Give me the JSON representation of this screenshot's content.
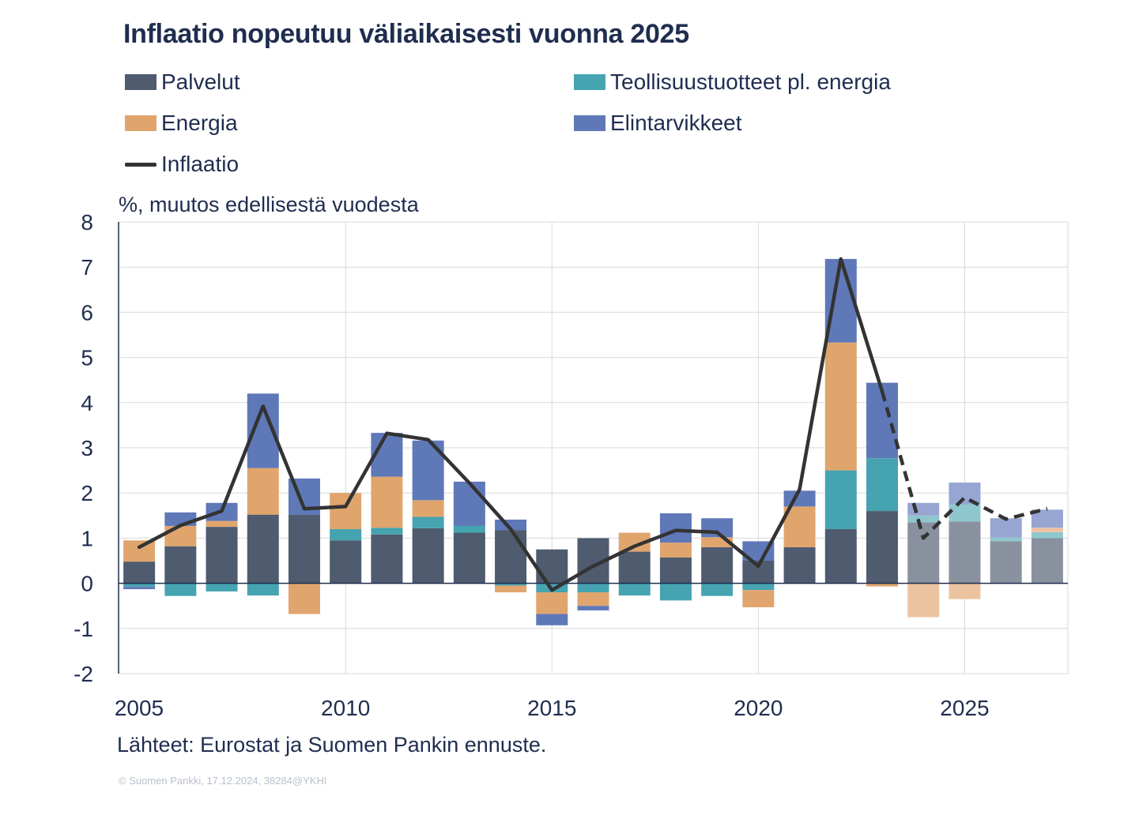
{
  "title": "Inflaatio nopeutuu väliaikaisesti vuonna 2025",
  "legend": {
    "services": "Palvelut",
    "industrial": "Teollisuustuotteet pl. energia",
    "energy": "Energia",
    "food": "Elintarvikkeet",
    "inflation": "Inflaatio"
  },
  "unit_label": "%, muutos edellisestä vuodesta",
  "source": "Lähteet: Eurostat ja Suomen Pankin ennuste.",
  "copyright": "© Suomen Pankki, 17.12.2024, 38284@YKHI",
  "colors": {
    "services": "#4f5b6e",
    "industrial": "#46a3b0",
    "energy": "#e0a56d",
    "food": "#5f78b8",
    "inflation": "#333333",
    "services_forecast": "#8a919e",
    "industrial_forecast": "#8fc7cf",
    "energy_forecast": "#ecc3a0",
    "food_forecast": "#97a5d3"
  },
  "chart_data": {
    "type": "bar",
    "stacked": true,
    "title": "Inflaatio nopeutuu väliaikaisesti vuonna 2025",
    "ylabel": "%, muutos edellisestä vuodesta",
    "xlabel": "",
    "ylim": [
      -2,
      8
    ],
    "yticks": [
      -2,
      -1,
      0,
      1,
      2,
      3,
      4,
      5,
      6,
      7,
      8
    ],
    "xticks": [
      2005,
      2010,
      2015,
      2020,
      2025
    ],
    "grid": true,
    "legend_position": "top",
    "categories": [
      2005,
      2006,
      2007,
      2008,
      2009,
      2010,
      2011,
      2012,
      2013,
      2014,
      2015,
      2016,
      2017,
      2018,
      2019,
      2020,
      2021,
      2022,
      2023,
      2024,
      2025,
      2026,
      2027
    ],
    "forecast_from": 2024,
    "series": [
      {
        "name": "Palvelut",
        "key": "services",
        "values": [
          0.48,
          0.82,
          1.25,
          1.52,
          1.52,
          0.95,
          1.08,
          1.22,
          1.12,
          1.18,
          0.75,
          1.0,
          0.7,
          0.57,
          0.8,
          0.5,
          0.8,
          1.2,
          1.6,
          1.35,
          1.37,
          0.93,
          1.0
        ]
      },
      {
        "name": "Teollisuustuotteet pl. energia",
        "key": "industrial",
        "values": [
          -0.08,
          -0.28,
          -0.18,
          -0.27,
          0.0,
          0.25,
          0.15,
          0.25,
          0.15,
          -0.05,
          -0.2,
          -0.2,
          -0.27,
          -0.38,
          -0.28,
          -0.15,
          0.0,
          1.3,
          1.17,
          0.15,
          0.38,
          0.08,
          0.13
        ]
      },
      {
        "name": "Energia",
        "key": "energy",
        "values": [
          0.47,
          0.45,
          0.13,
          1.03,
          -0.68,
          0.8,
          1.13,
          0.37,
          0.0,
          -0.15,
          -0.48,
          -0.3,
          0.42,
          0.33,
          0.22,
          -0.38,
          0.9,
          2.83,
          -0.07,
          -0.75,
          -0.35,
          0.0,
          0.1
        ]
      },
      {
        "name": "Elintarvikkeet",
        "key": "food",
        "values": [
          -0.05,
          0.3,
          0.4,
          1.65,
          0.8,
          0.0,
          0.97,
          1.32,
          0.98,
          0.23,
          -0.25,
          -0.1,
          0.0,
          0.65,
          0.42,
          0.43,
          0.35,
          1.85,
          1.67,
          0.28,
          0.48,
          0.43,
          0.4
        ]
      }
    ],
    "line": {
      "name": "Inflaatio",
      "values": [
        0.8,
        1.28,
        1.6,
        3.92,
        1.65,
        1.7,
        3.32,
        3.18,
        2.22,
        1.2,
        -0.15,
        0.38,
        0.82,
        1.17,
        1.13,
        0.38,
        2.08,
        7.18,
        4.25,
        1.0,
        1.9,
        1.42,
        1.65
      ]
    },
    "source": "Lähteet: Eurostat ja Suomen Pankin ennuste."
  }
}
